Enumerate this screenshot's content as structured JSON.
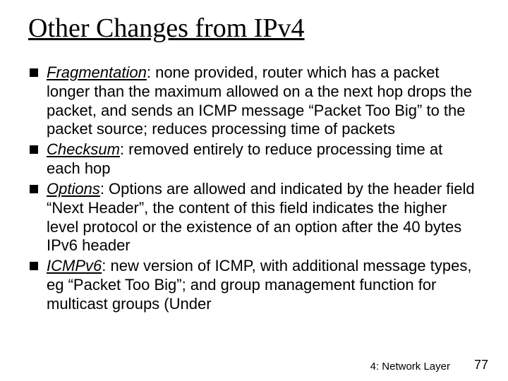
{
  "title": "Other Changes from IPv4",
  "bullets": [
    {
      "term": "Fragmentation",
      "text": ": none provided, router which has a packet longer than the maximum allowed on a the next hop drops the packet, and sends an ICMP message “Packet Too Big” to the packet source; reduces processing time of packets"
    },
    {
      "term": "Checksum",
      "text": ": removed entirely to reduce processing time at each hop"
    },
    {
      "term": "Options",
      "text": ": Options are allowed and indicated by the header field “Next Header”, the content of this field indicates the higher level protocol or the existence of an option after the 40 bytes IPv6 header"
    },
    {
      "term": "ICMPv6",
      "text": ": new version of ICMP, with additional message types, eg “Packet Too Big”; and group management function for multicast groups (Under"
    }
  ],
  "footer_label": "4: Network Layer",
  "footer_num": "77",
  "colors": {
    "background": "#ffffff",
    "text": "#000000",
    "bullet": "#000000"
  }
}
